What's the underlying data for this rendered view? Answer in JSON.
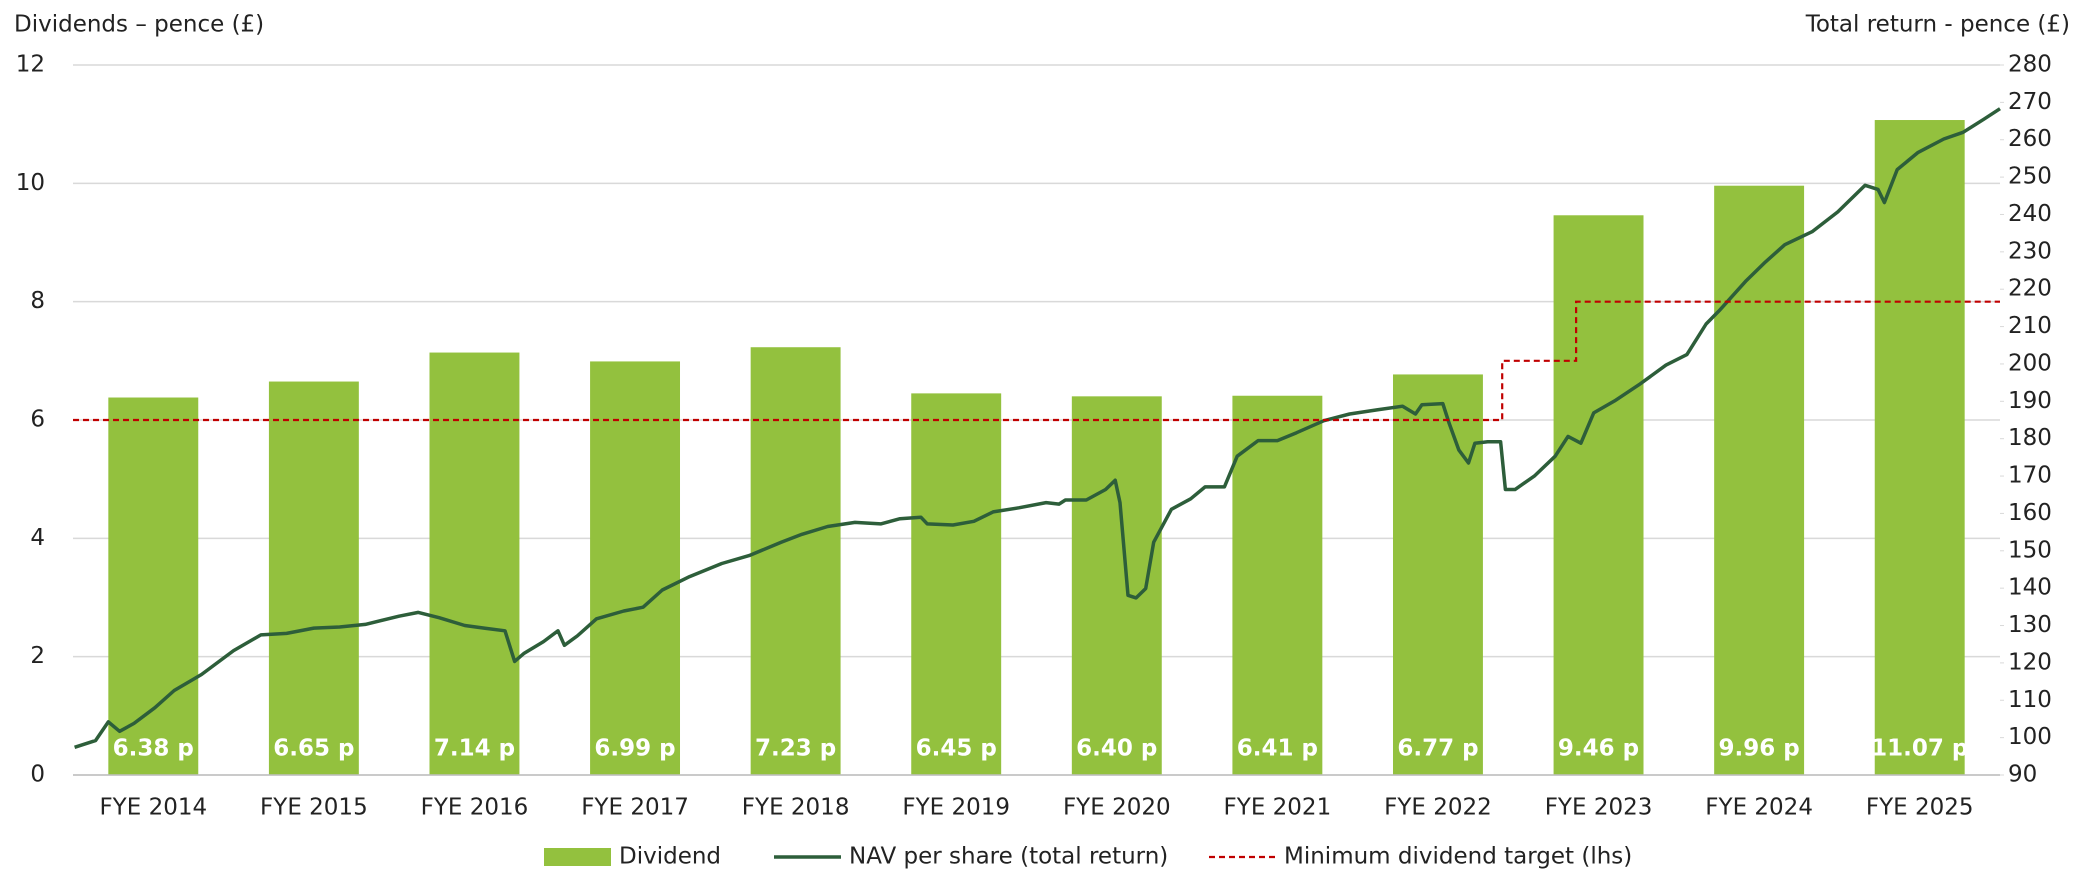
{
  "chart_data": {
    "type": "combo",
    "ylabel": "Dividends – pence (£)",
    "y2label": "Total return - pence (£)",
    "categories": [
      "FYE 2014",
      "FYE 2015",
      "FYE 2016",
      "FYE 2017",
      "FYE 2018",
      "FYE 2019",
      "FYE 2020",
      "FYE 2021",
      "FYE 2022",
      "FYE 2023",
      "FYE 2024",
      "FYE 2025"
    ],
    "ylim": [
      0,
      12
    ],
    "yticks": [
      0,
      2,
      4,
      6,
      8,
      10,
      12
    ],
    "y2lim": [
      90,
      280
    ],
    "y2ticks": [
      90,
      100,
      110,
      120,
      130,
      140,
      150,
      160,
      170,
      180,
      190,
      200,
      210,
      220,
      230,
      240,
      250,
      260,
      270,
      280
    ],
    "xlim": [
      -0.5,
      11.5
    ],
    "grid": true,
    "legend": "bottom",
    "series": [
      {
        "name": "Dividend",
        "type": "bar",
        "color": "#93c13e",
        "values": [
          6.38,
          6.65,
          7.14,
          6.99,
          7.23,
          6.45,
          6.4,
          6.41,
          6.77,
          9.46,
          9.96,
          11.07
        ],
        "value_labels": [
          "6.38 p",
          "6.65 p",
          "7.14 p",
          "6.99 p",
          "7.23 p",
          "6.45 p",
          "6.40 p",
          "6.41 p",
          "6.77 p",
          "9.46 p",
          "9.96 p",
          "11.07 p"
        ]
      },
      {
        "name": "NAV per share (total return)",
        "type": "line",
        "axis": "y2",
        "color": "#2d5e3a",
        "x": [
          -0.49,
          -0.36,
          -0.28,
          -0.21,
          -0.12,
          0.01,
          0.13,
          0.3,
          0.5,
          0.67,
          0.83,
          1.0,
          1.16,
          1.32,
          1.53,
          1.65,
          1.78,
          1.94,
          2.06,
          2.19,
          2.25,
          2.31,
          2.43,
          2.52,
          2.56,
          2.64,
          2.76,
          2.93,
          3.05,
          3.17,
          3.34,
          3.54,
          3.71,
          3.91,
          4.04,
          4.2,
          4.37,
          4.53,
          4.65,
          4.78,
          4.82,
          4.98,
          5.11,
          5.23,
          5.39,
          5.56,
          5.64,
          5.68,
          5.81,
          5.93,
          5.99,
          6.02,
          6.07,
          6.12,
          6.18,
          6.23,
          6.34,
          6.46,
          6.55,
          6.67,
          6.75,
          6.88,
          7.0,
          7.12,
          7.29,
          7.45,
          7.62,
          7.78,
          7.86,
          7.9,
          8.03,
          8.07,
          8.13,
          8.19,
          8.23,
          8.31,
          8.39,
          8.42,
          8.48,
          8.6,
          8.73,
          8.81,
          8.89,
          8.97,
          9.1,
          9.26,
          9.42,
          9.55,
          9.67,
          9.75,
          9.92,
          10.04,
          10.16,
          10.33,
          10.49,
          10.66,
          10.74,
          10.78,
          10.86,
          10.99,
          11.15,
          11.27,
          11.4,
          11.5
        ],
        "values": [
          97.4,
          99.2,
          104.2,
          101.7,
          103.8,
          108.0,
          112.6,
          116.9,
          123.3,
          127.5,
          127.9,
          129.3,
          129.6,
          130.3,
          132.5,
          133.5,
          132.1,
          130.0,
          129.3,
          128.6,
          120.4,
          122.6,
          125.7,
          128.6,
          124.7,
          127.2,
          131.8,
          133.9,
          134.9,
          139.5,
          143.1,
          146.6,
          148.7,
          152.3,
          154.4,
          156.5,
          157.6,
          157.2,
          158.6,
          159.0,
          157.2,
          156.9,
          157.9,
          160.4,
          161.5,
          162.9,
          162.5,
          163.6,
          163.6,
          166.4,
          168.9,
          162.9,
          138.1,
          137.4,
          139.9,
          152.3,
          161.1,
          163.9,
          167.1,
          167.1,
          175.3,
          179.5,
          179.5,
          181.6,
          184.8,
          186.6,
          187.7,
          188.7,
          186.6,
          189.1,
          189.4,
          184.1,
          177.0,
          173.5,
          178.8,
          179.2,
          179.2,
          166.4,
          166.4,
          170.0,
          175.3,
          180.6,
          178.8,
          186.9,
          190.1,
          194.7,
          199.7,
          202.5,
          210.7,
          214.2,
          222.3,
          227.3,
          231.9,
          235.4,
          240.7,
          247.8,
          246.7,
          243.2,
          252.0,
          256.6,
          260.2,
          262.0,
          265.5,
          268.3
        ]
      },
      {
        "name": "Minimum dividend target (lhs)",
        "type": "step",
        "color": "#c00000",
        "x": [
          -0.5,
          8.4,
          8.4,
          8.86,
          8.86,
          11.5
        ],
        "values": [
          6,
          6,
          7,
          7,
          8,
          8
        ]
      }
    ]
  }
}
